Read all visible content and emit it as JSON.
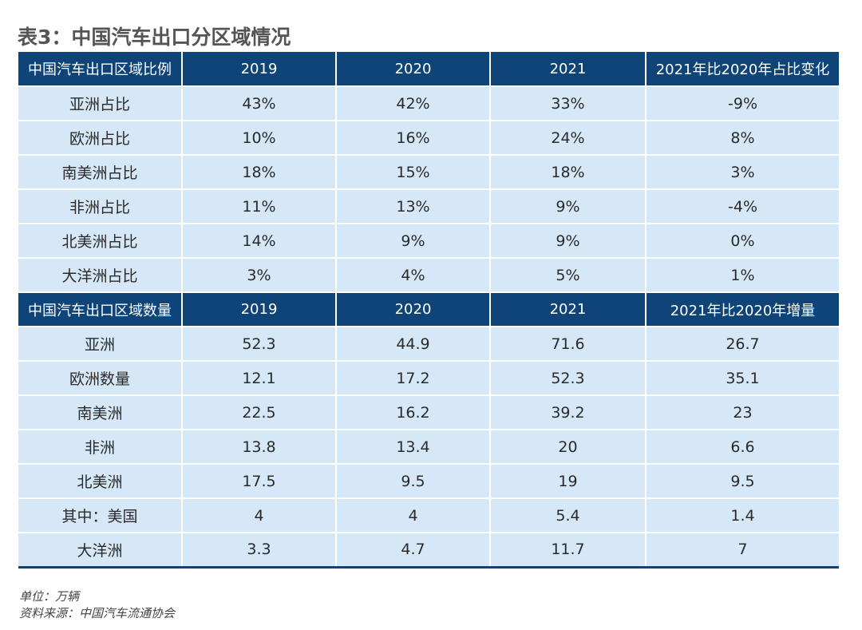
{
  "title": "表3：中国汽车出口分区域情况",
  "section1": {
    "headers": [
      "中国汽车出口区域比例",
      "2019",
      "2020",
      "2021",
      "2021年比2020年占比变化"
    ],
    "rows": [
      [
        "亚洲占比",
        "43%",
        "42%",
        "33%",
        "-9%"
      ],
      [
        "欧洲占比",
        "10%",
        "16%",
        "24%",
        "8%"
      ],
      [
        "南美洲占比",
        "18%",
        "15%",
        "18%",
        "3%"
      ],
      [
        "非洲占比",
        "11%",
        "13%",
        "9%",
        "-4%"
      ],
      [
        "北美洲占比",
        "14%",
        "9%",
        "9%",
        "0%"
      ],
      [
        "大洋洲占比",
        "3%",
        "4%",
        "5%",
        "1%"
      ]
    ]
  },
  "section2": {
    "headers": [
      "中国汽车出口区域数量",
      "2019",
      "2020",
      "2021",
      "2021年比2020年增量"
    ],
    "rows": [
      [
        "亚洲",
        "52.3",
        "44.9",
        "71.6",
        "26.7"
      ],
      [
        "欧洲数量",
        "12.1",
        "17.2",
        "52.3",
        "35.1"
      ],
      [
        "南美洲",
        "22.5",
        "16.2",
        "39.2",
        "23"
      ],
      [
        "非洲",
        "13.8",
        "13.4",
        "20",
        "6.6"
      ],
      [
        "北美洲",
        "17.5",
        "9.5",
        "19",
        "9.5"
      ],
      [
        "其中：美国",
        "4",
        "4",
        "5.4",
        "1.4"
      ],
      [
        "大洋洲",
        "3.3",
        "4.7",
        "11.7",
        "7"
      ]
    ]
  },
  "notes": {
    "unit": "单位：万辆",
    "source": "资料来源：中国汽车流通协会"
  },
  "colors": {
    "header_bg": "#0f4479",
    "cell_bg": "#d6e8f7",
    "title_text": "#555555"
  }
}
